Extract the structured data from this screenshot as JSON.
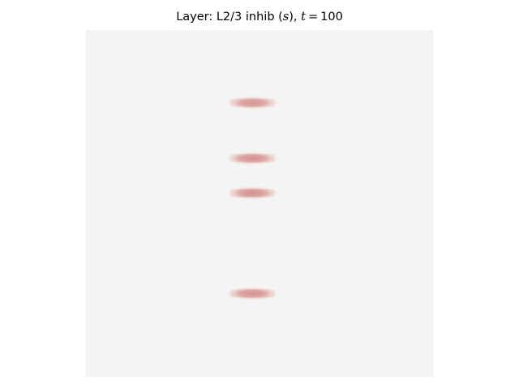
{
  "figure": {
    "title_prefix": "Layer: L2/3 inhib (",
    "title_var": "s",
    "title_mid": "), ",
    "time_var": "t",
    "time_eq": "=",
    "time_value": "100",
    "background_color": "#f4f4f4",
    "blob_color": "#d48c8c",
    "activity_blobs": [
      {
        "row": 0.21,
        "col": 0.48,
        "intensity": 0.85
      },
      {
        "row": 0.37,
        "col": 0.48,
        "intensity": 0.92
      },
      {
        "row": 0.47,
        "col": 0.48,
        "intensity": 0.92
      },
      {
        "row": 0.76,
        "col": 0.48,
        "intensity": 0.9
      }
    ]
  }
}
